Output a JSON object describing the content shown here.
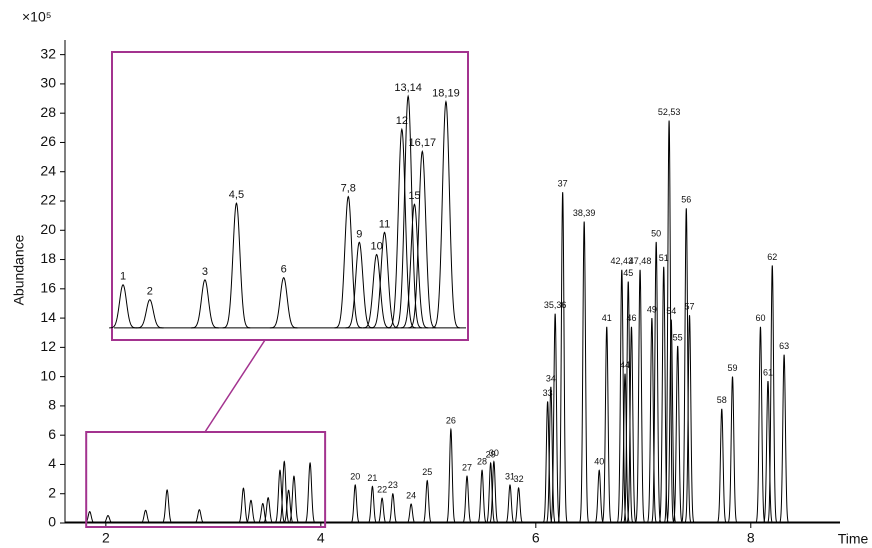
{
  "chart_data": [
    {
      "type": "line",
      "ylabel": "Abundance",
      "y_scale_label": "×10⁵",
      "xlabel": "Time",
      "xlim": [
        1.62,
        8.83
      ],
      "ylim": [
        0,
        33
      ],
      "xticks": [
        2,
        4,
        6,
        8
      ],
      "yticks": [
        0,
        2,
        4,
        6,
        8,
        10,
        12,
        14,
        16,
        18,
        20,
        22,
        24,
        26,
        28,
        30,
        32
      ],
      "color": "#000000",
      "peaks": [
        {
          "label": "20",
          "x": 4.32,
          "y": 2.6
        },
        {
          "label": "21",
          "x": 4.48,
          "y": 2.5
        },
        {
          "label": "22",
          "x": 4.57,
          "y": 1.7
        },
        {
          "label": "23",
          "x": 4.67,
          "y": 2.0
        },
        {
          "label": "24",
          "x": 4.84,
          "y": 1.3
        },
        {
          "label": "25",
          "x": 4.99,
          "y": 2.9
        },
        {
          "label": "26",
          "x": 5.21,
          "y": 6.4
        },
        {
          "label": "27",
          "x": 5.36,
          "y": 3.2
        },
        {
          "label": "28",
          "x": 5.5,
          "y": 3.6
        },
        {
          "label": "29",
          "x": 5.58,
          "y": 4.1
        },
        {
          "label": "30",
          "x": 5.61,
          "y": 4.2
        },
        {
          "label": "31",
          "x": 5.76,
          "y": 2.6
        },
        {
          "label": "32",
          "x": 5.84,
          "y": 2.4
        },
        {
          "label": "33",
          "x": 6.11,
          "y": 8.3
        },
        {
          "label": "34",
          "x": 6.14,
          "y": 9.3
        },
        {
          "label": "35,36",
          "x": 6.18,
          "y": 14.3
        },
        {
          "label": "37",
          "x": 6.25,
          "y": 22.6
        },
        {
          "label": "38,39",
          "x": 6.45,
          "y": 20.6
        },
        {
          "label": "40",
          "x": 6.59,
          "y": 3.6
        },
        {
          "label": "41",
          "x": 6.66,
          "y": 13.4
        },
        {
          "label": "42,43",
          "x": 6.8,
          "y": 17.3
        },
        {
          "label": "44",
          "x": 6.83,
          "y": 10.2
        },
        {
          "label": "45",
          "x": 6.86,
          "y": 16.5
        },
        {
          "label": "46",
          "x": 6.89,
          "y": 13.4
        },
        {
          "label": "47,48",
          "x": 6.97,
          "y": 17.3
        },
        {
          "label": "49",
          "x": 7.08,
          "y": 14.0
        },
        {
          "label": "50",
          "x": 7.12,
          "y": 19.2
        },
        {
          "label": "51",
          "x": 7.19,
          "y": 17.5
        },
        {
          "label": "52,53",
          "x": 7.24,
          "y": 27.5
        },
        {
          "label": "54",
          "x": 7.26,
          "y": 13.9
        },
        {
          "label": "55",
          "x": 7.32,
          "y": 12.1
        },
        {
          "label": "56",
          "x": 7.4,
          "y": 21.5
        },
        {
          "label": "57",
          "x": 7.43,
          "y": 14.2
        },
        {
          "label": "58",
          "x": 7.73,
          "y": 7.8
        },
        {
          "label": "59",
          "x": 7.83,
          "y": 10.0
        },
        {
          "label": "60",
          "x": 8.09,
          "y": 13.4
        },
        {
          "label": "61",
          "x": 8.16,
          "y": 9.7
        },
        {
          "label": "62",
          "x": 8.2,
          "y": 17.6
        },
        {
          "label": "63",
          "x": 8.31,
          "y": 11.5
        }
      ]
    },
    {
      "type": "line",
      "frame_color": "#a3338f",
      "xlim": [
        1.78,
        4.04
      ],
      "ylim": [
        -0.22,
        5.0
      ],
      "color": "#000000",
      "peaks": [
        {
          "label": "1",
          "x": 1.85,
          "y": 0.78
        },
        {
          "label": "2",
          "x": 2.02,
          "y": 0.51
        },
        {
          "label": "3",
          "x": 2.37,
          "y": 0.87
        },
        {
          "label": "4,5",
          "x": 2.57,
          "y": 2.26
        },
        {
          "label": "6",
          "x": 2.87,
          "y": 0.91
        },
        {
          "label": "7,8",
          "x": 3.28,
          "y": 2.38
        },
        {
          "label": "9",
          "x": 3.35,
          "y": 1.55
        },
        {
          "label": "10",
          "x": 3.46,
          "y": 1.33
        },
        {
          "label": "11",
          "x": 3.51,
          "y": 1.73
        },
        {
          "label": "12",
          "x": 3.62,
          "y": 3.6
        },
        {
          "label": "13,14",
          "x": 3.66,
          "y": 4.2
        },
        {
          "label": "15",
          "x": 3.7,
          "y": 2.24
        },
        {
          "label": "16,17",
          "x": 3.75,
          "y": 3.2
        },
        {
          "label": "18,19",
          "x": 3.9,
          "y": 4.1
        }
      ]
    }
  ]
}
